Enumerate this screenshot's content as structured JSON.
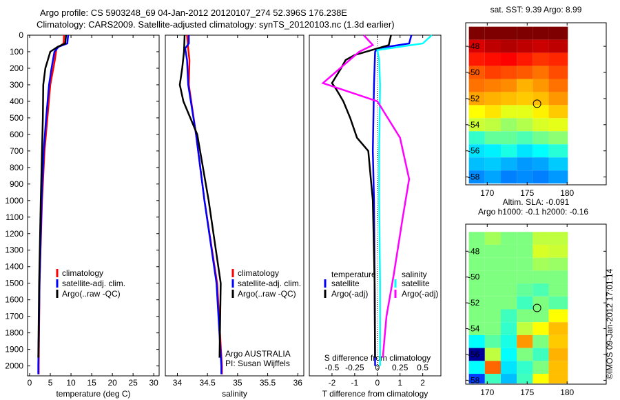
{
  "title": {
    "line1": "Argo profile: CS 5903248_69 04-Jan-2012 20120107_274 52.396S 176.238E",
    "line2": "Climatology: CARS2009. Satellite-adjusted climatology: synTS_20120103.nc (1.3d earlier)"
  },
  "credit": "©IMOS 09-Jan-2012 17:01:14",
  "chart_data": [
    {
      "type": "line",
      "id": "temperature",
      "xlabel": "temperature (deg C)",
      "xlim": [
        -0.5,
        31.3
      ],
      "ylim": [
        0,
        2060
      ],
      "xticks": [
        0,
        5,
        10,
        15,
        20,
        25,
        30
      ],
      "yticks": [
        0,
        100,
        200,
        300,
        400,
        500,
        600,
        700,
        800,
        900,
        1000,
        1100,
        1200,
        1300,
        1400,
        1500,
        1600,
        1700,
        1800,
        1900,
        2000
      ],
      "legend": [
        "climatology",
        "satellite-adj. clim.",
        "Argo(..raw -QC)"
      ],
      "series": [
        {
          "name": "climatology",
          "color": "#ff0000",
          "depth": [
            0,
            50,
            80,
            150,
            300,
            500,
            700,
            1000,
            1500,
            2000,
            2050
          ],
          "values": [
            8.3,
            8.2,
            6.5,
            6.1,
            5.0,
            4.3,
            3.6,
            3.0,
            2.4,
            2.2,
            2.2
          ]
        },
        {
          "name": "satellite-adj. clim.",
          "color": "#0000ff",
          "depth": [
            0,
            50,
            70,
            100,
            200,
            300,
            500,
            700,
            1000,
            1500,
            2000,
            2050
          ],
          "values": [
            9.3,
            9.1,
            7.0,
            6.0,
            5.3,
            4.7,
            4.0,
            3.4,
            2.9,
            2.4,
            2.1,
            2.1
          ]
        },
        {
          "name": "Argo(..raw -QC)",
          "color": "#000000",
          "depth": [
            0,
            50,
            70,
            100,
            200,
            300,
            500,
            700,
            1000,
            1500,
            1950
          ],
          "values": [
            8.8,
            8.6,
            6.8,
            5.0,
            3.8,
            3.3,
            3.2,
            3.0,
            2.7,
            2.3,
            2.1
          ]
        }
      ]
    },
    {
      "type": "line",
      "id": "salinity",
      "xlabel": "salinity",
      "xlim": [
        33.8,
        36.1
      ],
      "ylim": [
        0,
        2060
      ],
      "xticks": [
        34,
        34.5,
        35,
        35.5,
        36
      ],
      "legend": [
        "climatology",
        "satellite-adj. clim.",
        "Argo(..raw -QC)"
      ],
      "annotation": [
        "Argo AUSTRALIA",
        "PI: Susan Wijffels"
      ],
      "series": [
        {
          "name": "climatology",
          "color": "#ff0000",
          "depth": [
            0,
            80,
            150,
            300,
            600,
            1000,
            1500,
            2000,
            2050
          ],
          "values": [
            34.16,
            34.18,
            34.2,
            34.19,
            34.31,
            34.45,
            34.66,
            34.74,
            34.74
          ]
        },
        {
          "name": "satellite-adj. clim.",
          "color": "#0000ff",
          "depth": [
            0,
            50,
            80,
            150,
            300,
            600,
            1000,
            1500,
            2000,
            2050
          ],
          "values": [
            34.19,
            34.19,
            34.13,
            34.16,
            34.18,
            34.31,
            34.45,
            34.65,
            34.73,
            34.73
          ]
        },
        {
          "name": "Argo(..raw -QC)",
          "color": "#000000",
          "depth": [
            0,
            100,
            200,
            300,
            400,
            600,
            1000,
            1500,
            1950
          ],
          "values": [
            34.12,
            34.11,
            34.08,
            34.04,
            34.1,
            34.33,
            34.52,
            34.72,
            34.7
          ]
        }
      ]
    },
    {
      "type": "line",
      "id": "difference",
      "xlabel": "T difference from climatology",
      "x2label": "S difference from climatology",
      "xlim": [
        -3,
        2.8
      ],
      "ylim": [
        0,
        2060
      ],
      "xticks": [
        -2,
        -1,
        0,
        1,
        2
      ],
      "x2ticks": [
        "-0.5",
        "-0.25",
        "0",
        "0.25",
        "0.5"
      ],
      "legend": {
        "temperature": "temperature",
        "salinity": "salinity",
        "items": [
          "satellite",
          "Argo(-adj)",
          "satellite",
          "Argo(-adj)"
        ]
      },
      "series": [
        {
          "name": "T satellite",
          "color": "#0000ff",
          "depth": [
            0,
            50,
            80,
            100,
            300,
            700,
            1000,
            1500,
            2000
          ],
          "values": [
            1.5,
            1.4,
            0.0,
            -0.1,
            -0.15,
            -0.2,
            -0.15,
            -0.12,
            -0.1
          ]
        },
        {
          "name": "T Argo(-adj)",
          "color": "#000000",
          "depth": [
            0,
            60,
            120,
            150,
            200,
            290,
            330,
            400,
            500,
            620,
            700,
            1000,
            1500,
            1950
          ],
          "values": [
            0.6,
            0.5,
            -1.0,
            -1.4,
            -1.6,
            -2.0,
            -1.8,
            -1.5,
            -1.2,
            -0.9,
            -0.4,
            -0.2,
            -0.12,
            -0.1
          ]
        },
        {
          "name": "S satellite",
          "color": "#00ffff",
          "depth": [
            0,
            50,
            90,
            150,
            300,
            700,
            1000,
            1500,
            2000
          ],
          "values": [
            0.6,
            0.5,
            0.0,
            0.02,
            0.03,
            0.02,
            0.02,
            0.03,
            0.03
          ]
        },
        {
          "name": "S Argo(-adj)",
          "color": "#ff00ff",
          "depth": [
            0,
            60,
            100,
            290,
            400,
            620,
            870,
            1100,
            1450,
            1700,
            1950
          ],
          "values": [
            -0.15,
            -0.05,
            -0.2,
            -0.6,
            0.0,
            0.25,
            0.35,
            0.28,
            0.18,
            0.1,
            0.06
          ]
        }
      ]
    },
    {
      "type": "heatmap",
      "id": "sst_map",
      "title": "sat. SST: 9.39 Argo: 8.99",
      "lon": [
        168,
        170,
        172,
        174,
        176,
        178,
        180
      ],
      "lat": [
        -47,
        -48,
        -49,
        -50,
        -51,
        -52,
        -53,
        -54,
        -55,
        -56,
        -57,
        -58
      ],
      "xticks": [
        170,
        175,
        180
      ],
      "yticks": [
        -48,
        -50,
        -52,
        -54,
        -56,
        -58
      ],
      "range": [
        4,
        12
      ],
      "values": [
        [
          12,
          12,
          12,
          12,
          12,
          12
        ],
        [
          11.3,
          11.5,
          11.6,
          11.5,
          11.4,
          11.5
        ],
        [
          10.8,
          10.9,
          11,
          10.8,
          10.6,
          10.7
        ],
        [
          10.3,
          10.5,
          10.4,
          10.3,
          10.1,
          10.4
        ],
        [
          10.1,
          10.0,
          9.9,
          9.6,
          9.8,
          10.1
        ],
        [
          9.7,
          9.6,
          9.5,
          9.4,
          9.5,
          9.8
        ],
        [
          9.0,
          9.2,
          8.8,
          8.8,
          9.1,
          9.4
        ],
        [
          8.6,
          8.5,
          8.2,
          8.4,
          8.7,
          8.8
        ],
        [
          7.4,
          7.8,
          7.8,
          7.6,
          7.9,
          8.1
        ],
        [
          6.8,
          6.9,
          7.2,
          6.8,
          7.0,
          7.3
        ],
        [
          6.5,
          6.6,
          6.4,
          6.2,
          6.3,
          6.6
        ],
        [
          6.1,
          6.3,
          6.0,
          6.1,
          6.0,
          6.2
        ]
      ],
      "argo": {
        "lon": 176.238,
        "lat": -52.396
      }
    },
    {
      "type": "heatmap",
      "id": "sla_map",
      "title": "Altim. SLA: -0.091",
      "subtitle": "Argo h1000: -0.1 h2000: -0.16",
      "lon": [
        168,
        170,
        172,
        174,
        176,
        178,
        180
      ],
      "lat": [
        -47,
        -48,
        -49,
        -50,
        -51,
        -52,
        -53,
        -54,
        -55,
        -56,
        -57,
        -58
      ],
      "xticks": [
        170,
        175,
        180
      ],
      "yticks": [
        -48,
        -50,
        -52,
        -54,
        -56,
        -58
      ],
      "range": [
        -0.4,
        0.4
      ],
      "values": [
        [
          0,
          0.03,
          0,
          0,
          0.05,
          0.05
        ],
        [
          0,
          0,
          0,
          0,
          0.07,
          0.06
        ],
        [
          0,
          0,
          0,
          0,
          0.03,
          0.02
        ],
        [
          0,
          0,
          0,
          0,
          0,
          0
        ],
        [
          0,
          0,
          0,
          -0.02,
          -0.04,
          0
        ],
        [
          0,
          0,
          0,
          -0.05,
          0,
          -0.03
        ],
        [
          0,
          0,
          -0.05,
          0,
          0,
          0.1
        ],
        [
          0,
          0,
          -0.06,
          0.05,
          0.1,
          0.15
        ],
        [
          -0.1,
          -0.03,
          -0.08,
          0.18,
          0,
          0.14
        ],
        [
          -0.38,
          0.05,
          -0.1,
          0,
          -0.05,
          0.16
        ],
        [
          -0.1,
          0.22,
          -0.12,
          -0.06,
          0,
          0.15
        ],
        [
          -0.25,
          -0.05,
          -0.15,
          -0.05,
          0.1,
          0.15
        ]
      ],
      "argo": {
        "lon": 176.238,
        "lat": -52.396
      }
    }
  ]
}
